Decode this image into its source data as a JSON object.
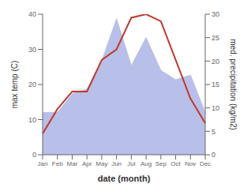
{
  "chart_data": {
    "type": "line",
    "categories": [
      "Jan",
      "Feb",
      "Mar",
      "Apr",
      "May",
      "Jun",
      "Jul",
      "Aug",
      "Sep",
      "Oct",
      "Nov",
      "Dec"
    ],
    "xlabel": "date (month)",
    "ylabel": "max temp (C)",
    "y2label": "med. precipitation (kg/m2)",
    "series": [
      {
        "type": "area",
        "axis": "y2",
        "color": "#b8bfe8",
        "values": [
          9,
          9,
          13,
          14,
          20,
          29,
          19,
          25,
          18,
          16,
          17,
          9
        ]
      },
      {
        "type": "line",
        "color": "#c0392b",
        "values": [
          6,
          13,
          18,
          18,
          27,
          30,
          39,
          40,
          38,
          27,
          16,
          9
        ]
      }
    ],
    "ylim": [
      0,
      40
    ],
    "yticks": [
      0,
      10,
      20,
      30,
      40
    ],
    "y2lim": [
      0,
      30
    ],
    "y2ticks": [
      0,
      5,
      10,
      15,
      20,
      25,
      30
    ],
    "grid": false
  }
}
